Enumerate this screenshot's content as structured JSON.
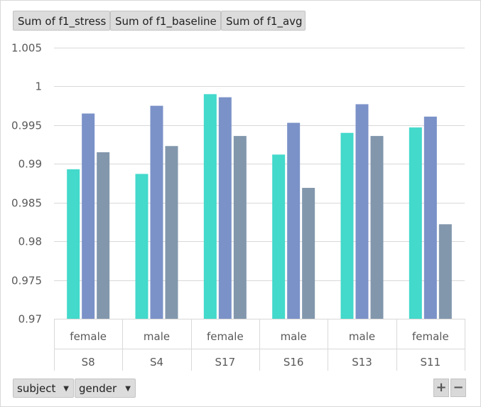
{
  "legend_buttons": [
    "Sum of f1_stress",
    "Sum of f1_baseline",
    "Sum of f1_avg"
  ],
  "axis_fields": [
    {
      "label": "subject",
      "icon": "dropdown-arrow-icon"
    },
    {
      "label": "gender",
      "icon": "dropdown-arrow-icon"
    }
  ],
  "zoom": {
    "plus": "+",
    "minus": "−"
  },
  "colors": {
    "f1_stress": "#43d9cb",
    "f1_baseline": "#7b92c8",
    "f1_avg": "#8297ac"
  },
  "chart_data": {
    "type": "bar",
    "categories": [
      "S8",
      "S4",
      "S17",
      "S16",
      "S13",
      "S11"
    ],
    "subcategories": [
      "female",
      "male",
      "female",
      "male",
      "male",
      "female"
    ],
    "series": [
      {
        "name": "Sum of f1_stress",
        "values": [
          0.9893,
          0.9887,
          0.999,
          0.9912,
          0.994,
          0.9947
        ]
      },
      {
        "name": "Sum of f1_baseline",
        "values": [
          0.9965,
          0.9975,
          0.9986,
          0.9953,
          0.9977,
          0.9961
        ]
      },
      {
        "name": "Sum of f1_avg",
        "values": [
          0.9915,
          0.9923,
          0.9936,
          0.9869,
          0.9936,
          0.9822
        ]
      }
    ],
    "yticks": [
      "1.005",
      "1",
      "0.995",
      "0.99",
      "0.985",
      "0.98",
      "0.975",
      "0.97"
    ],
    "ylim": [
      0.97,
      1.005
    ],
    "grid": true,
    "legend": "top-left"
  }
}
